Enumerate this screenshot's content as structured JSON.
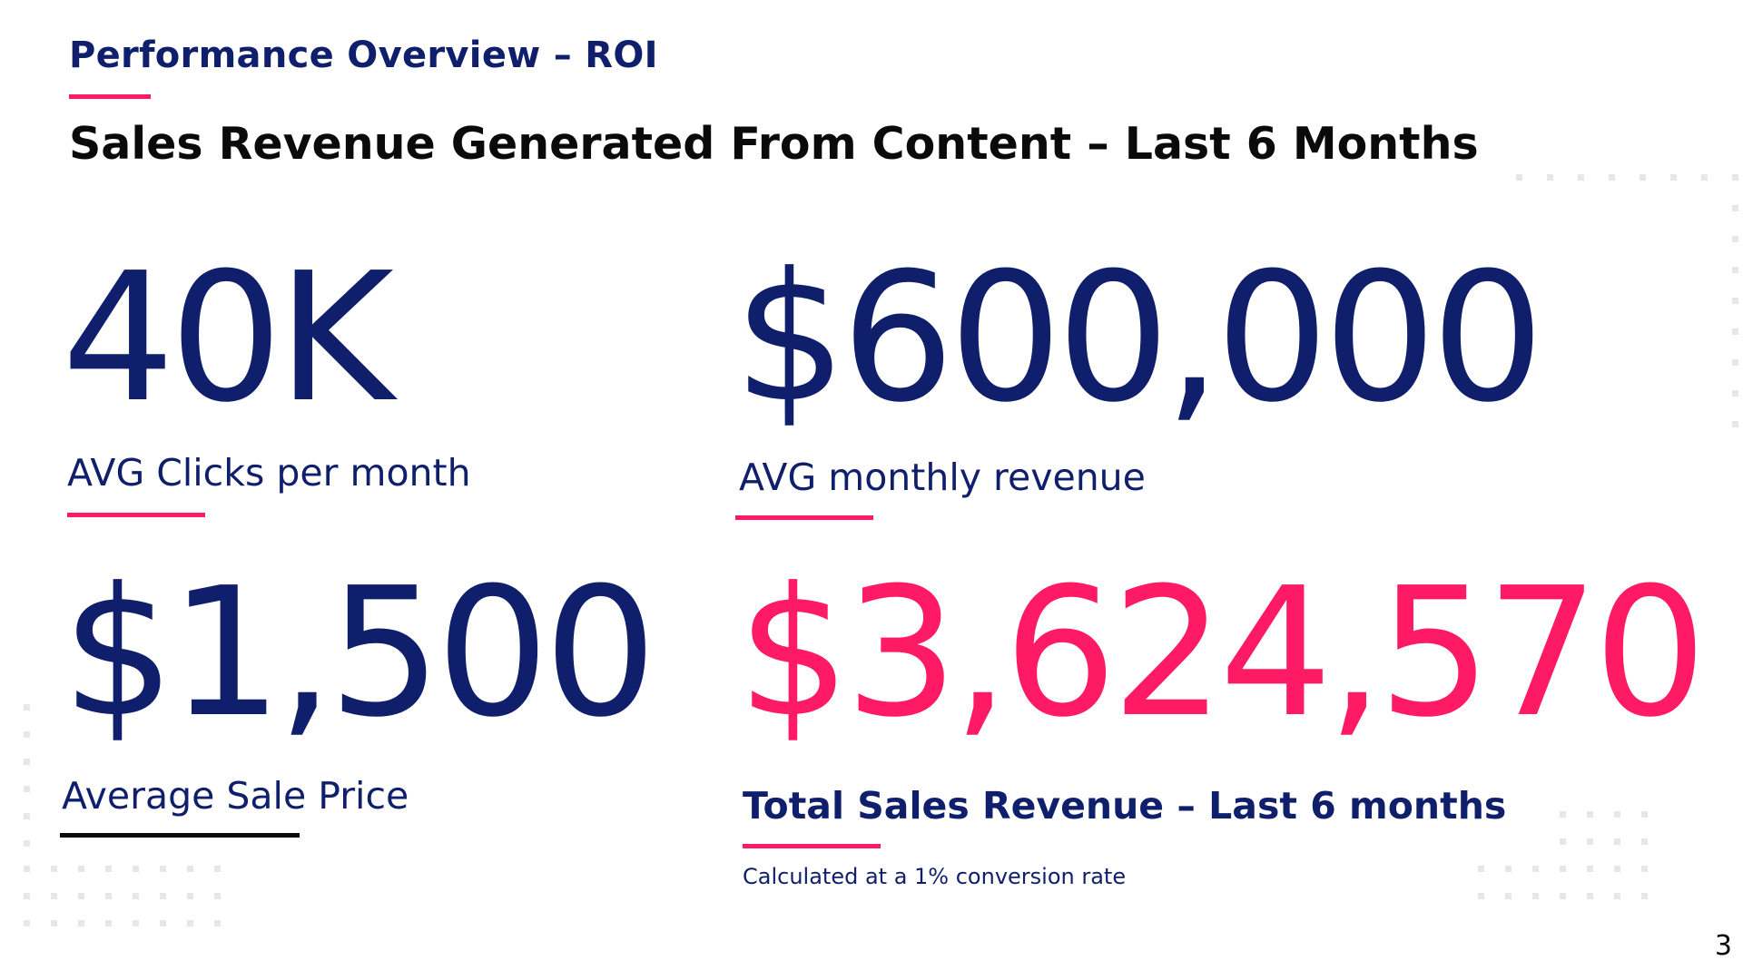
{
  "header": {
    "section_title": "Performance Overview – ROI",
    "headline": "Sales Revenue Generated From Content – Last 6 Months"
  },
  "metrics": {
    "clicks": {
      "value": "40K",
      "label": "AVG Clicks per month"
    },
    "monthly_revenue": {
      "value": "$600,000",
      "label": "AVG monthly revenue"
    },
    "avg_sale_price": {
      "value": "$1,500",
      "label": "Average Sale Price"
    },
    "total_revenue": {
      "value": "$3,624,570",
      "label": "Total Sales Revenue – Last 6 months",
      "note": "Calculated at a 1% conversion rate"
    }
  },
  "footer": {
    "page_number": "3"
  },
  "colors": {
    "navy": "#0f1f6b",
    "pink": "#ff1a66",
    "black": "#0a0a0a",
    "dot_gray": "#e6e6ec"
  }
}
